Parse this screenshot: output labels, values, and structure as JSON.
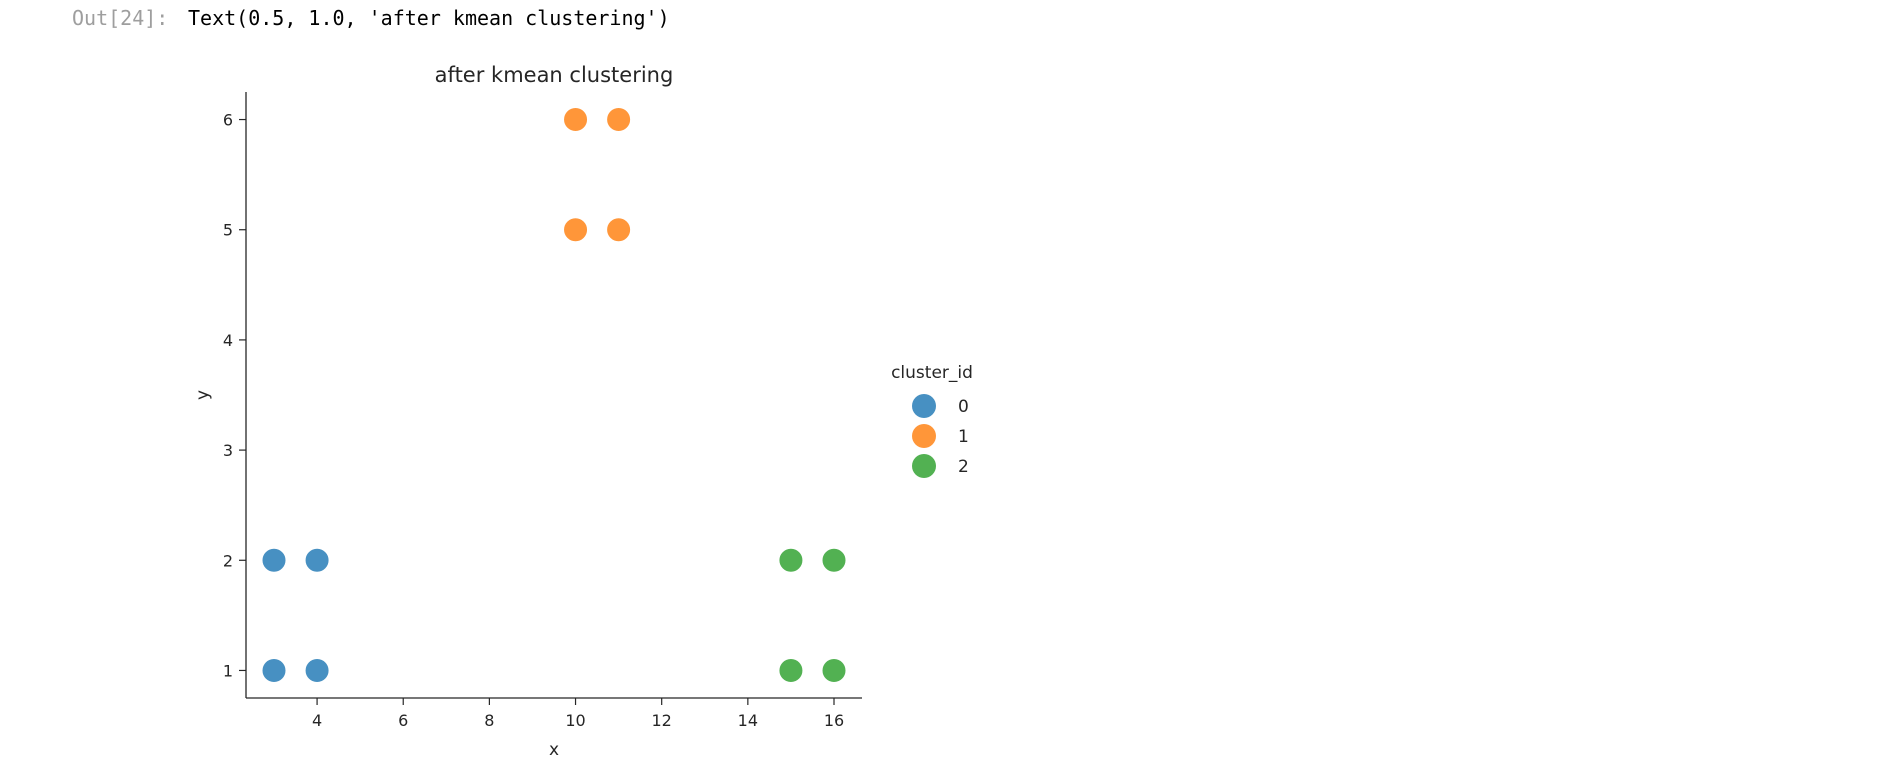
{
  "output": {
    "prompt": "Out[24]:",
    "text": "Text(0.5, 1.0, 'after kmean clustering')"
  },
  "chart_data": {
    "type": "scatter",
    "title": "after kmean clustering",
    "xlabel": "x",
    "ylabel": "y",
    "xlim": [
      2.35,
      16.65
    ],
    "ylim": [
      0.75,
      6.25
    ],
    "xticks": [
      4,
      6,
      8,
      10,
      12,
      14,
      16
    ],
    "yticks": [
      1,
      2,
      3,
      4,
      5,
      6
    ],
    "grid": false,
    "legend": {
      "title": "cluster_id",
      "placement": "right",
      "entries": [
        "0",
        "1",
        "2"
      ]
    },
    "series": [
      {
        "name": "0",
        "color": "#1f77b4",
        "points": [
          [
            3,
            1
          ],
          [
            3,
            2
          ],
          [
            4,
            1
          ],
          [
            4,
            2
          ]
        ]
      },
      {
        "name": "1",
        "color": "#ff7f0e",
        "points": [
          [
            10,
            5
          ],
          [
            10,
            6
          ],
          [
            11,
            5
          ],
          [
            11,
            6
          ]
        ]
      },
      {
        "name": "2",
        "color": "#2ca02c",
        "points": [
          [
            15,
            1
          ],
          [
            15,
            2
          ],
          [
            16,
            1
          ],
          [
            16,
            2
          ]
        ]
      }
    ]
  }
}
